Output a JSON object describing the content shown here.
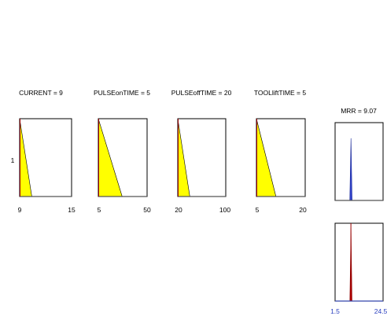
{
  "chart_data": {
    "type": "area",
    "description_panels": "fuzzy inference rule viewer",
    "y_tick_label": "1",
    "colors": {
      "input_fill": "#ffff00",
      "output_fill_top": "#3344cc",
      "output_fill_aggregate": "#cc0000",
      "frame": "#000000",
      "baseline": "#555555",
      "left_edge": "#990000",
      "axis_tick_blue": "#2a3fbf"
    },
    "inputs": [
      {
        "title": "CURRENT = 9",
        "xlim": [
          9,
          15
        ],
        "tick_labels": [
          "9",
          "15"
        ],
        "polygon": [
          [
            9,
            1
          ],
          [
            9,
            0
          ],
          [
            10.4,
            0
          ]
        ]
      },
      {
        "title": "PULSEonTIME = 5",
        "xlim": [
          5,
          50
        ],
        "tick_labels": [
          "5",
          "50"
        ],
        "polygon": [
          [
            5,
            1
          ],
          [
            5,
            0
          ],
          [
            27,
            0
          ]
        ]
      },
      {
        "title": "PULSEoffTIME = 20",
        "xlim": [
          20,
          100
        ],
        "tick_labels": [
          "20",
          "100"
        ],
        "polygon": [
          [
            20,
            1
          ],
          [
            20,
            0
          ],
          [
            40,
            0
          ]
        ]
      },
      {
        "title": "TOOLliftTIME = 5",
        "xlim": [
          5,
          20
        ],
        "tick_labels": [
          "5",
          "20"
        ],
        "polygon": [
          [
            5,
            1
          ],
          [
            5,
            0
          ],
          [
            11,
            0
          ]
        ]
      }
    ],
    "output": {
      "title": "MRR = 9.07",
      "xlim": [
        1.5,
        24.5
      ],
      "tick_labels": [
        "1.5",
        "24.5"
      ],
      "rule_output": {
        "center": 9.1,
        "half_width": 0.55,
        "height": 0.85
      },
      "aggregate": {
        "center": 9.1,
        "half_width": 0.5,
        "height": 1.0,
        "marker": 9.07
      }
    }
  }
}
